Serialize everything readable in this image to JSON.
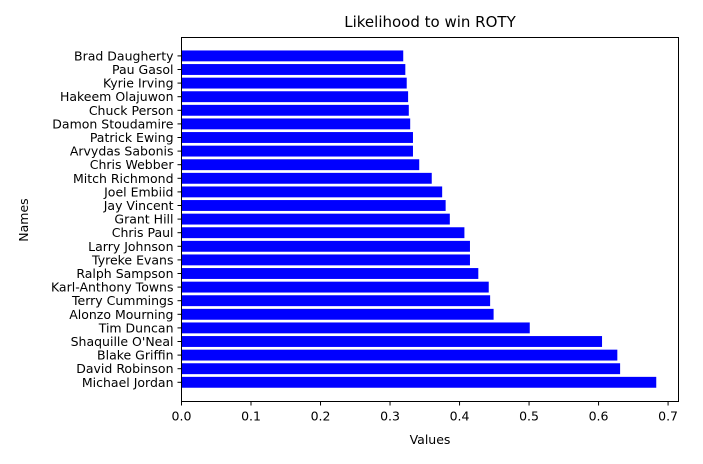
{
  "chart_data": {
    "type": "bar",
    "orientation": "horizontal",
    "title": "Likelihood to win ROTY",
    "xlabel": "Values",
    "ylabel": "Names",
    "xlim": [
      0.0,
      0.715
    ],
    "xticks": [
      "0.0",
      "0.1",
      "0.2",
      "0.3",
      "0.4",
      "0.5",
      "0.6",
      "0.7"
    ],
    "grid": false,
    "bar_color": "#0000ff",
    "categories": [
      "Michael Jordan",
      "David Robinson",
      "Blake Griffin",
      "Shaquille O'Neal",
      "Tim Duncan",
      "Alonzo Mourning",
      "Terry Cummings",
      "Karl-Anthony Towns",
      "Ralph Sampson",
      "Tyreke Evans",
      "Larry Johnson",
      "Chris Paul",
      "Grant Hill",
      "Jay Vincent",
      "Joel Embiid",
      "Mitch Richmond",
      "Chris Webber",
      "Arvydas Sabonis",
      "Patrick Ewing",
      "Damon Stoudamire",
      "Chuck Person",
      "Hakeem Olajuwon",
      "Kyrie Irving",
      "Pau Gasol",
      "Brad Daugherty"
    ],
    "values": [
      0.683,
      0.631,
      0.627,
      0.605,
      0.501,
      0.449,
      0.444,
      0.442,
      0.427,
      0.415,
      0.415,
      0.407,
      0.386,
      0.38,
      0.375,
      0.36,
      0.342,
      0.333,
      0.333,
      0.329,
      0.327,
      0.326,
      0.324,
      0.322,
      0.319
    ]
  }
}
